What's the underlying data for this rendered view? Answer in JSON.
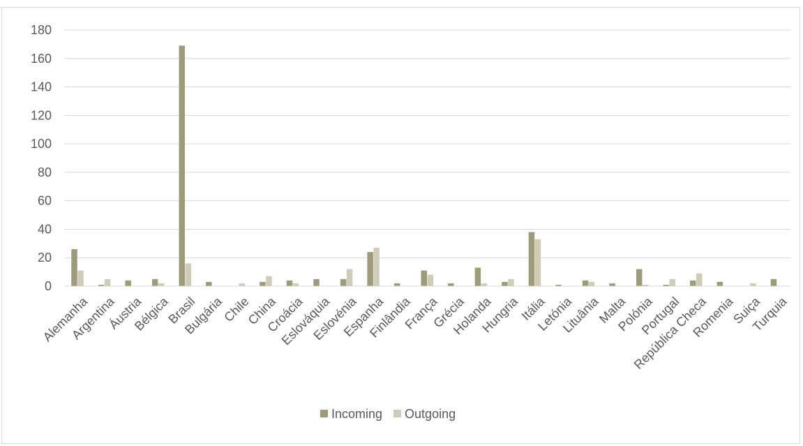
{
  "chart_data": {
    "type": "bar",
    "title": "",
    "xlabel": "",
    "ylabel": "",
    "ylim": [
      0,
      180
    ],
    "yticks": [
      0,
      20,
      40,
      60,
      80,
      100,
      120,
      140,
      160,
      180
    ],
    "grid": true,
    "legend_position": "bottom",
    "categories": [
      "Alemanha",
      "Argentina",
      "Áustria",
      "Bélgica",
      "Brasil",
      "Bulgária",
      "Chile",
      "China",
      "Croácia",
      "Eslováquia",
      "Eslovénia",
      "Espanha",
      "Finlândia",
      "França",
      "Grécia",
      "Holanda",
      "Hungria",
      "Itália",
      "Letónia",
      "Lituânia",
      "Malta",
      "Polónia",
      "Portugal",
      "República Checa",
      "Romenia",
      "Suiça",
      "Turquia"
    ],
    "series": [
      {
        "name": "Incoming",
        "color": "#9e9b7b",
        "values": [
          26,
          1,
          4,
          5,
          169,
          3,
          0,
          3,
          4,
          5,
          5,
          24,
          2,
          11,
          2,
          13,
          3,
          38,
          1,
          4,
          2,
          12,
          1,
          4,
          3,
          0,
          5
        ]
      },
      {
        "name": "Outgoing",
        "color": "#cfcdb8",
        "values": [
          11,
          5,
          0,
          2,
          16,
          0,
          2,
          7,
          2,
          0,
          12,
          27,
          0,
          8,
          0,
          2,
          5,
          33,
          0,
          3,
          0,
          1,
          5,
          9,
          0,
          2,
          0
        ]
      }
    ]
  }
}
